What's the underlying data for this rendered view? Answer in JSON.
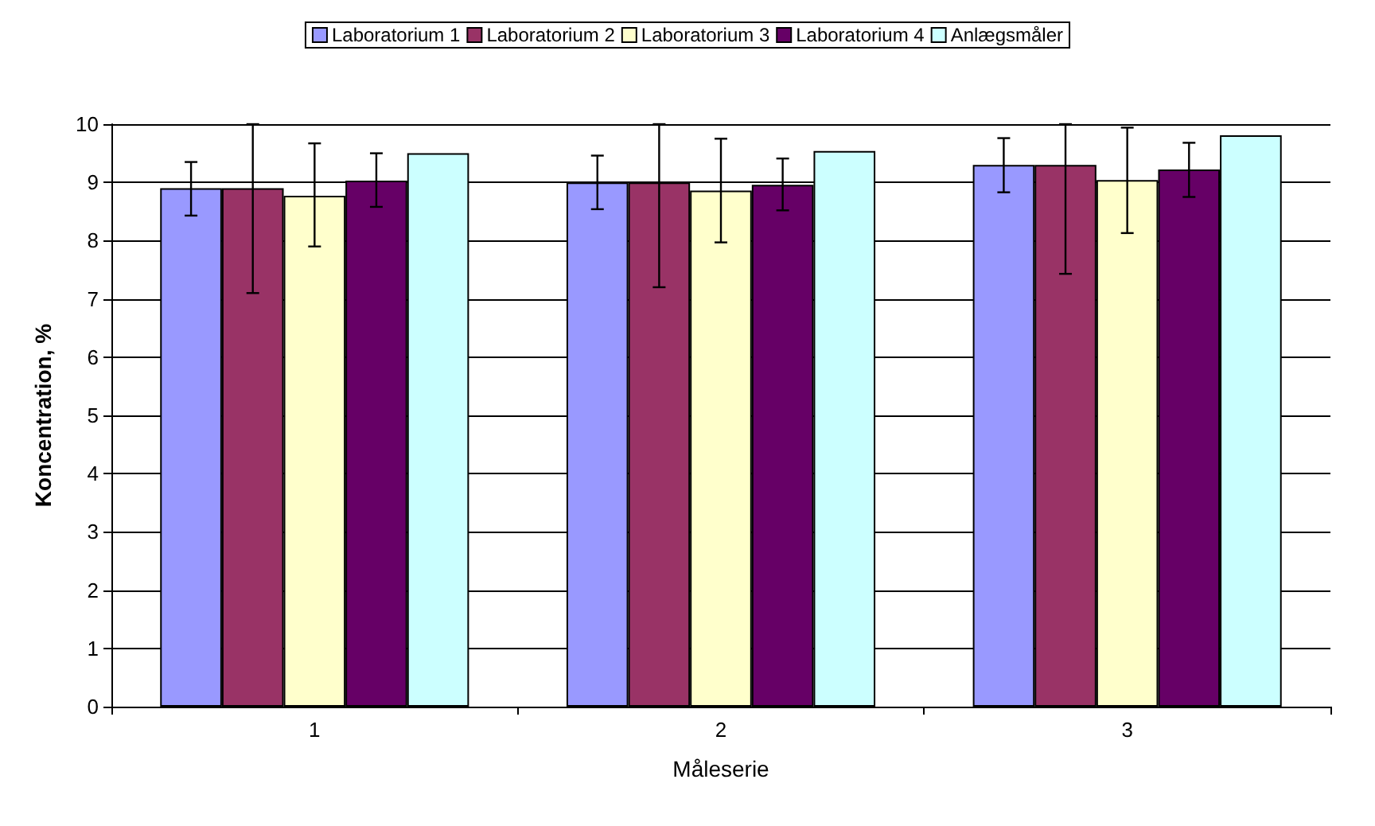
{
  "chart_data": {
    "type": "bar",
    "xlabel": "Måleserie",
    "ylabel": "Koncentration, %",
    "categories": [
      "1",
      "2",
      "3"
    ],
    "series": [
      {
        "name": "Laboratorium 1",
        "color": "#9999ff",
        "values": [
          8.9,
          9.0,
          9.3
        ],
        "errors": [
          [
            8.43,
            9.35
          ],
          [
            8.54,
            9.46
          ],
          [
            8.83,
            9.76
          ]
        ]
      },
      {
        "name": "Laboratorium 2",
        "color": "#993366",
        "values": [
          8.9,
          9.0,
          9.3
        ],
        "errors": [
          [
            7.1,
            10
          ],
          [
            7.2,
            10
          ],
          [
            7.43,
            10
          ]
        ]
      },
      {
        "name": "Laboratorium 3",
        "color": "#ffffcc",
        "values": [
          8.77,
          8.86,
          9.04
        ],
        "errors": [
          [
            7.9,
            9.67
          ],
          [
            7.97,
            9.75
          ],
          [
            8.13,
            9.94
          ]
        ]
      },
      {
        "name": "Laboratorium 4",
        "color": "#660066",
        "values": [
          9.03,
          8.96,
          9.22
        ],
        "errors": [
          [
            8.58,
            9.5
          ],
          [
            8.52,
            9.41
          ],
          [
            8.75,
            9.68
          ]
        ]
      },
      {
        "name": "Anlægsmåler",
        "color": "#ccffff",
        "values": [
          9.5,
          9.54,
          9.81
        ]
      }
    ],
    "ylim": [
      0,
      10
    ],
    "yticks": [
      0,
      1,
      2,
      3,
      4,
      5,
      6,
      7,
      8,
      9,
      10
    ],
    "grid": "y",
    "legend": "top"
  }
}
